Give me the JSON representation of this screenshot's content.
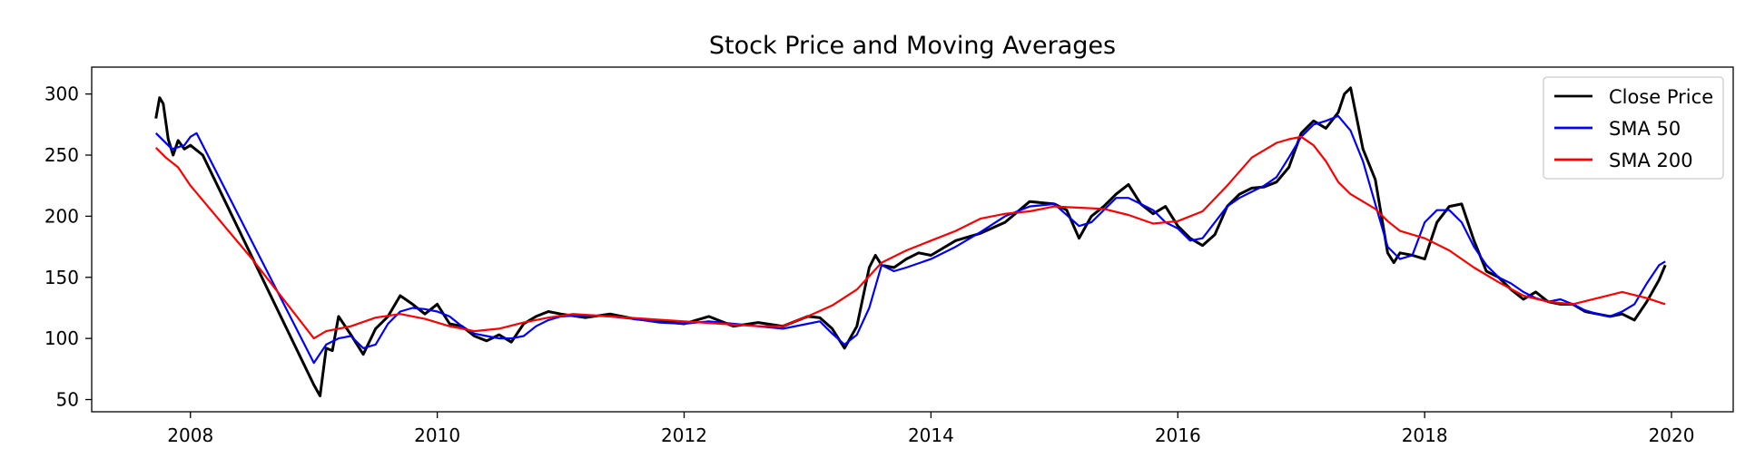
{
  "chart_data": {
    "type": "line",
    "title": "Stock Price and Moving Averages",
    "xlabel": "",
    "ylabel": "",
    "xlim": [
      2007.2,
      2020.5
    ],
    "ylim": [
      40,
      322
    ],
    "x_ticks": [
      2008,
      2010,
      2012,
      2014,
      2016,
      2018,
      2020
    ],
    "x_tick_labels": [
      "2008",
      "2010",
      "2012",
      "2014",
      "2016",
      "2018",
      "2020"
    ],
    "y_ticks": [
      50,
      100,
      150,
      200,
      250,
      300
    ],
    "y_tick_labels": [
      "50",
      "100",
      "150",
      "200",
      "250",
      "300"
    ],
    "grid": false,
    "legend_position": "top-right",
    "series": [
      {
        "name": "Close Price",
        "color": "#000000",
        "x": [
          2007.72,
          2007.75,
          2007.78,
          2007.82,
          2007.86,
          2007.9,
          2007.95,
          2008.0,
          2008.05,
          2008.1,
          2009.0,
          2009.05,
          2009.1,
          2009.15,
          2009.2,
          2009.3,
          2009.4,
          2009.5,
          2009.6,
          2009.7,
          2009.8,
          2009.9,
          2010.0,
          2010.1,
          2010.2,
          2010.3,
          2010.4,
          2010.5,
          2010.6,
          2010.7,
          2010.8,
          2010.9,
          2011.0,
          2011.2,
          2011.4,
          2011.6,
          2011.8,
          2012.0,
          2012.2,
          2012.4,
          2012.6,
          2012.8,
          2013.0,
          2013.1,
          2013.2,
          2013.3,
          2013.4,
          2013.5,
          2013.55,
          2013.6,
          2013.7,
          2013.8,
          2013.9,
          2014.0,
          2014.2,
          2014.4,
          2014.6,
          2014.8,
          2015.0,
          2015.1,
          2015.2,
          2015.3,
          2015.4,
          2015.5,
          2015.6,
          2015.7,
          2015.8,
          2015.9,
          2016.0,
          2016.1,
          2016.2,
          2016.3,
          2016.4,
          2016.5,
          2016.6,
          2016.7,
          2016.8,
          2016.9,
          2017.0,
          2017.1,
          2017.2,
          2017.3,
          2017.35,
          2017.4,
          2017.45,
          2017.5,
          2017.6,
          2017.7,
          2017.75,
          2017.8,
          2017.9,
          2018.0,
          2018.1,
          2018.2,
          2018.3,
          2018.4,
          2018.5,
          2018.6,
          2018.7,
          2018.8,
          2018.9,
          2019.0,
          2019.1,
          2019.2,
          2019.3,
          2019.4,
          2019.5,
          2019.6,
          2019.7,
          2019.8,
          2019.9,
          2019.95
        ],
        "y": [
          280,
          297,
          292,
          263,
          250,
          262,
          255,
          258,
          254,
          250,
          62,
          53,
          92,
          90,
          118,
          103,
          87,
          108,
          118,
          135,
          128,
          120,
          128,
          112,
          110,
          102,
          98,
          103,
          97,
          112,
          118,
          122,
          120,
          117,
          120,
          116,
          114,
          112,
          118,
          110,
          113,
          110,
          118,
          117,
          108,
          92,
          110,
          158,
          168,
          160,
          158,
          165,
          170,
          168,
          180,
          186,
          195,
          212,
          210,
          205,
          182,
          200,
          208,
          218,
          226,
          210,
          202,
          208,
          192,
          182,
          176,
          185,
          208,
          218,
          223,
          224,
          228,
          240,
          268,
          278,
          272,
          285,
          300,
          305,
          280,
          255,
          230,
          170,
          162,
          170,
          168,
          165,
          195,
          208,
          210,
          180,
          155,
          150,
          140,
          132,
          138,
          130,
          128,
          128,
          122,
          120,
          118,
          120,
          115,
          130,
          148,
          160
        ]
      },
      {
        "name": "SMA 50",
        "color": "#0000ff",
        "x": [
          2007.72,
          2007.85,
          2007.95,
          2008.0,
          2008.05,
          2009.0,
          2009.1,
          2009.2,
          2009.3,
          2009.4,
          2009.5,
          2009.6,
          2009.7,
          2009.8,
          2009.9,
          2010.0,
          2010.1,
          2010.2,
          2010.3,
          2010.4,
          2010.5,
          2010.6,
          2010.7,
          2010.8,
          2010.9,
          2011.0,
          2011.2,
          2011.4,
          2011.6,
          2011.8,
          2012.0,
          2012.2,
          2012.4,
          2012.6,
          2012.8,
          2013.0,
          2013.1,
          2013.2,
          2013.3,
          2013.4,
          2013.5,
          2013.6,
          2013.7,
          2013.8,
          2014.0,
          2014.2,
          2014.4,
          2014.6,
          2014.8,
          2015.0,
          2015.2,
          2015.3,
          2015.4,
          2015.5,
          2015.6,
          2015.7,
          2015.8,
          2015.9,
          2016.0,
          2016.1,
          2016.2,
          2016.3,
          2016.4,
          2016.5,
          2016.6,
          2016.7,
          2016.8,
          2016.9,
          2017.0,
          2017.1,
          2017.2,
          2017.3,
          2017.4,
          2017.5,
          2017.6,
          2017.7,
          2017.8,
          2017.9,
          2018.0,
          2018.1,
          2018.2,
          2018.3,
          2018.4,
          2018.5,
          2018.6,
          2018.7,
          2018.8,
          2018.9,
          2019.0,
          2019.1,
          2019.2,
          2019.3,
          2019.4,
          2019.5,
          2019.6,
          2019.7,
          2019.8,
          2019.9,
          2019.95
        ],
        "y": [
          268,
          255,
          258,
          265,
          268,
          80,
          95,
          100,
          102,
          92,
          95,
          112,
          122,
          125,
          124,
          122,
          118,
          110,
          104,
          102,
          100,
          100,
          102,
          110,
          115,
          118,
          119,
          118,
          116,
          113,
          112,
          114,
          112,
          110,
          108,
          112,
          114,
          104,
          95,
          103,
          125,
          160,
          155,
          158,
          165,
          175,
          187,
          200,
          208,
          210,
          192,
          195,
          205,
          215,
          215,
          210,
          205,
          195,
          190,
          180,
          182,
          195,
          208,
          215,
          220,
          225,
          232,
          248,
          265,
          275,
          278,
          282,
          270,
          245,
          210,
          175,
          165,
          168,
          195,
          205,
          205,
          195,
          175,
          160,
          150,
          145,
          138,
          133,
          130,
          132,
          128,
          123,
          120,
          118,
          122,
          128,
          145,
          160,
          163
        ]
      },
      {
        "name": "SMA 200",
        "color": "#ff0000",
        "x": [
          2007.72,
          2007.8,
          2007.9,
          2008.0,
          2008.5,
          2009.0,
          2009.1,
          2009.3,
          2009.5,
          2009.7,
          2009.9,
          2010.1,
          2010.3,
          2010.5,
          2010.7,
          2010.9,
          2011.1,
          2011.4,
          2011.7,
          2012.0,
          2012.3,
          2012.6,
          2012.8,
          2013.0,
          2013.2,
          2013.4,
          2013.6,
          2013.8,
          2014.0,
          2014.2,
          2014.4,
          2014.6,
          2014.8,
          2015.0,
          2015.2,
          2015.4,
          2015.6,
          2015.8,
          2016.0,
          2016.2,
          2016.4,
          2016.6,
          2016.8,
          2016.9,
          2017.0,
          2017.1,
          2017.2,
          2017.3,
          2017.4,
          2017.5,
          2017.6,
          2017.7,
          2017.8,
          2018.0,
          2018.2,
          2018.4,
          2018.6,
          2018.8,
          2019.0,
          2019.2,
          2019.4,
          2019.6,
          2019.8,
          2019.95
        ],
        "y": [
          256,
          248,
          240,
          225,
          165,
          100,
          106,
          110,
          117,
          120,
          116,
          110,
          106,
          108,
          113,
          117,
          120,
          118,
          116,
          114,
          112,
          110,
          110,
          118,
          127,
          140,
          162,
          172,
          180,
          188,
          198,
          202,
          204,
          208,
          207,
          206,
          201,
          194,
          196,
          204,
          225,
          248,
          260,
          263,
          265,
          258,
          245,
          228,
          218,
          212,
          206,
          196,
          188,
          182,
          172,
          158,
          146,
          135,
          130,
          128,
          133,
          138,
          133,
          128
        ]
      }
    ]
  }
}
